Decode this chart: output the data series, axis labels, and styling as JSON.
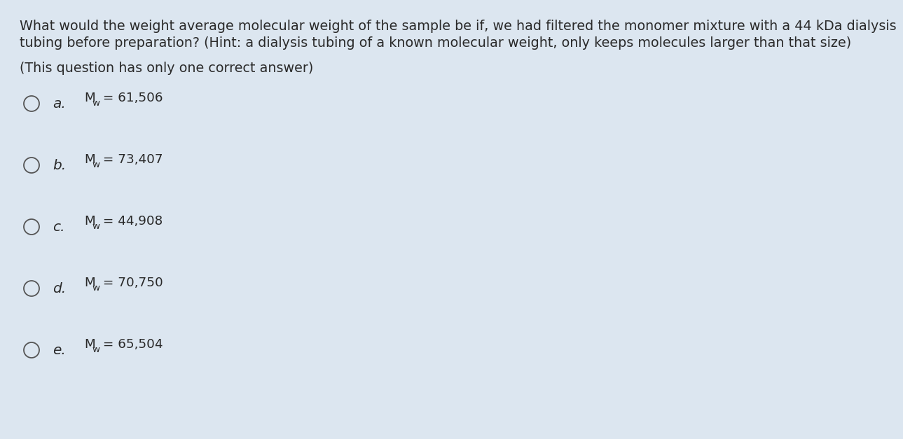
{
  "background_color": "#dce6f0",
  "question_line1": "What would the weight average molecular weight of the sample be if, we had filtered the monomer mixture with a 44 kDa dialysis",
  "question_line2": "tubing before preparation? (Hint: a dialysis tubing of a known molecular weight, only keeps molecules larger than that size)",
  "question_line3": "(This question has only one correct answer)",
  "option_values": [
    "61,506",
    "73,407",
    "44,908",
    "70,750",
    "65,504"
  ],
  "option_labels": [
    "a.",
    "b.",
    "c.",
    "d.",
    "e."
  ],
  "text_color": "#2a2a2a",
  "circle_color": "#555555",
  "font_size_question": 13.8,
  "font_size_option_label": 14.5,
  "font_size_option_text": 13.2,
  "fig_width": 12.0,
  "fig_height": 6.07
}
